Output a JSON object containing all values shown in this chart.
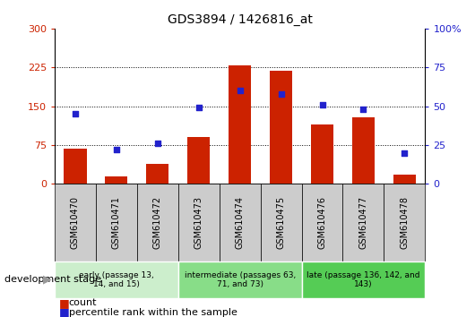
{
  "title": "GDS3894 / 1426816_at",
  "categories": [
    "GSM610470",
    "GSM610471",
    "GSM610472",
    "GSM610473",
    "GSM610474",
    "GSM610475",
    "GSM610476",
    "GSM610477",
    "GSM610478"
  ],
  "counts": [
    68,
    15,
    38,
    90,
    228,
    218,
    115,
    128,
    18
  ],
  "percentile_ranks": [
    45,
    22,
    26,
    49,
    60,
    58,
    51,
    48,
    20
  ],
  "ylim_left": [
    0,
    300
  ],
  "ylim_right": [
    0,
    100
  ],
  "yticks_left": [
    0,
    75,
    150,
    225,
    300
  ],
  "yticks_right": [
    0,
    25,
    50,
    75,
    100
  ],
  "bar_color": "#CC2200",
  "dot_color": "#2222CC",
  "groups": [
    {
      "label": "early (passage 13,\n14, and 15)",
      "indices": [
        0,
        1,
        2
      ],
      "color": "#CCEECC"
    },
    {
      "label": "intermediate (passages 63,\n71, and 73)",
      "indices": [
        3,
        4,
        5
      ],
      "color": "#88DD88"
    },
    {
      "label": "late (passage 136, 142, and\n143)",
      "indices": [
        6,
        7,
        8
      ],
      "color": "#55CC55"
    }
  ],
  "dev_stage_label": "development stage",
  "legend_count_label": "count",
  "legend_pct_label": "percentile rank within the sample",
  "tick_cell_color": "#CCCCCC",
  "plot_bg": "#FFFFFF",
  "fig_bg": "#FFFFFF",
  "border_color": "#888888"
}
